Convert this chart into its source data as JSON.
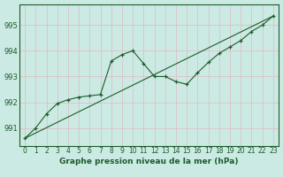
{
  "xlabel": "Graphe pression niveau de la mer (hPa)",
  "background_color": "#cceae4",
  "grid_color": "#b0d8d0",
  "line_color": "#1a5c2a",
  "xlim": [
    -0.5,
    23.5
  ],
  "ylim": [
    990.3,
    995.8
  ],
  "yticks": [
    991,
    992,
    993,
    994,
    995
  ],
  "xticks": [
    0,
    1,
    2,
    3,
    4,
    5,
    6,
    7,
    8,
    9,
    10,
    11,
    12,
    13,
    14,
    15,
    16,
    17,
    18,
    19,
    20,
    21,
    22,
    23
  ],
  "line1_x": [
    0,
    1,
    2,
    3,
    4,
    5,
    6,
    7,
    8,
    9,
    10,
    11,
    12,
    13,
    14,
    15,
    16,
    17,
    18,
    19,
    20,
    21,
    22,
    23
  ],
  "line1_y": [
    990.6,
    991.0,
    991.55,
    991.95,
    992.1,
    992.2,
    992.25,
    992.3,
    993.6,
    993.85,
    994.0,
    993.5,
    993.0,
    993.0,
    992.8,
    992.7,
    993.15,
    993.55,
    993.9,
    994.15,
    994.4,
    994.75,
    995.0,
    995.35
  ],
  "line2_x": [
    0,
    23
  ],
  "line2_y": [
    990.6,
    995.35
  ],
  "marker": "+"
}
